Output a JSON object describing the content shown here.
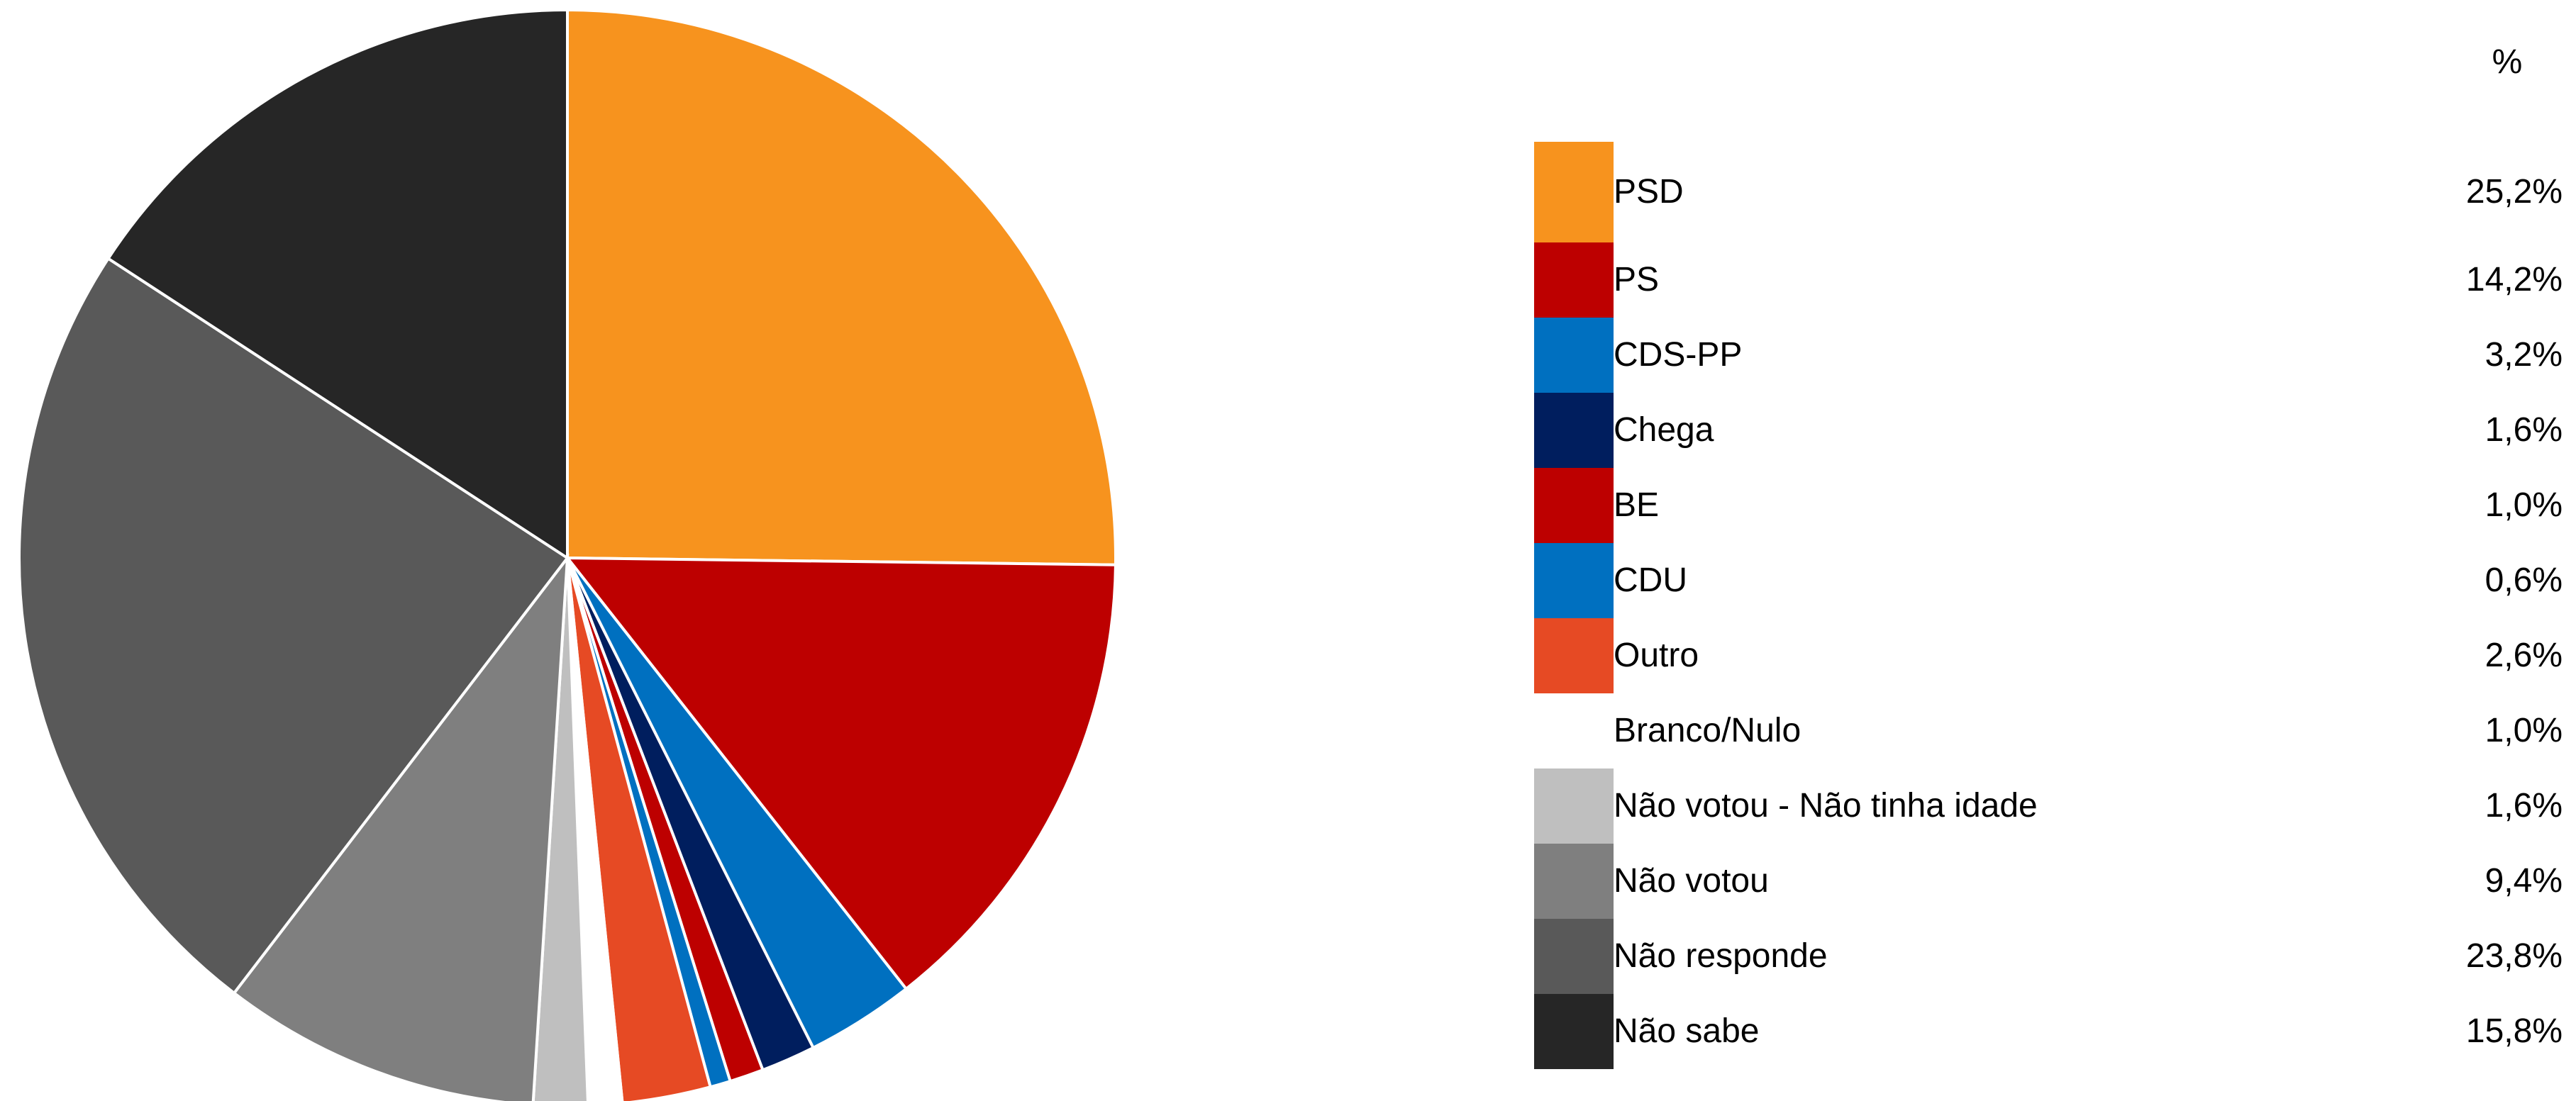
{
  "chart_data": {
    "type": "pie",
    "title": "",
    "value_header": "%",
    "slices": [
      {
        "label": "PSD",
        "value": 25.2,
        "display": "25,2%",
        "color": "#f7931e"
      },
      {
        "label": "PS",
        "value": 14.2,
        "display": "14,2%",
        "color": "#bd0000"
      },
      {
        "label": "CDS-PP",
        "value": 3.2,
        "display": "3,2%",
        "color": "#0070c0"
      },
      {
        "label": "Chega",
        "value": 1.6,
        "display": "1,6%",
        "color": "#001e5e"
      },
      {
        "label": "BE",
        "value": 1.0,
        "display": "1,0%",
        "color": "#bd0000"
      },
      {
        "label": "CDU",
        "value": 0.6,
        "display": "0,6%",
        "color": "#0070c0"
      },
      {
        "label": "Outro",
        "value": 2.6,
        "display": "2,6%",
        "color": "#e64a24"
      },
      {
        "label": "Branco/Nulo",
        "value": 1.0,
        "display": "1,0%",
        "color": "#ffffff"
      },
      {
        "label": "Não votou - Não tinha idade",
        "value": 1.6,
        "display": "1,6%",
        "color": "#bfbfbf"
      },
      {
        "label": "Não votou",
        "value": 9.4,
        "display": "9,4%",
        "color": "#7f7f7f"
      },
      {
        "label": "Não responde",
        "value": 23.8,
        "display": "23,8%",
        "color": "#595959"
      },
      {
        "label": "Não sabe",
        "value": 15.8,
        "display": "15,8%",
        "color": "#262626"
      }
    ],
    "legend_position": "right"
  }
}
